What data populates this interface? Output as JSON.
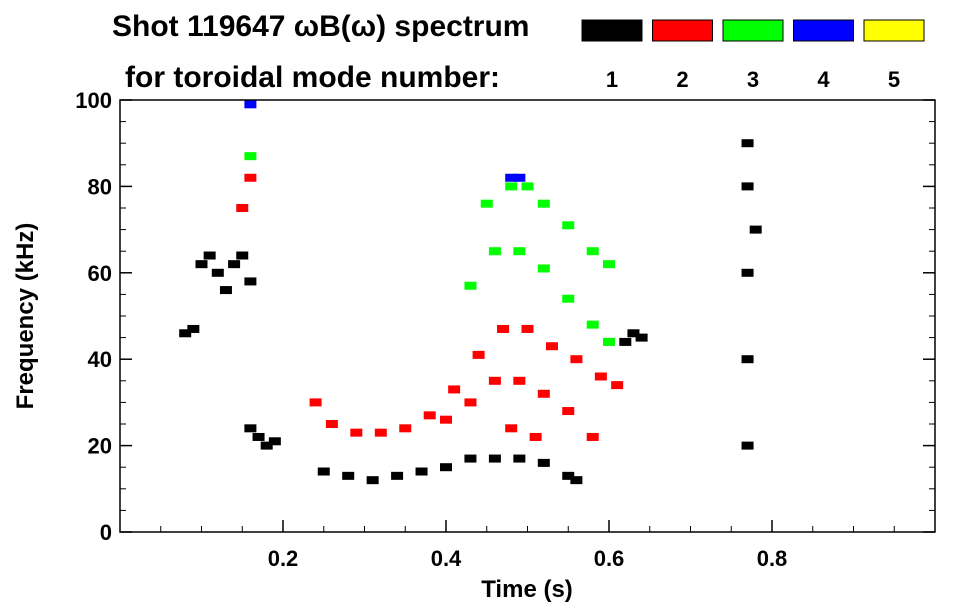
{
  "chart_data": {
    "type": "scatter",
    "title_line1": "Shot 119647 ωB(ω) spectrum",
    "title_line2": "for toroidal mode number:",
    "xlabel": "Time (s)",
    "ylabel": "Frequency (kHz)",
    "xlim": [
      0.0,
      1.0
    ],
    "ylim": [
      0,
      100
    ],
    "x_ticks": [
      0.2,
      0.4,
      0.6,
      0.8
    ],
    "x_tick_labels": [
      "0.2",
      "0.4",
      "0.6",
      "0.8"
    ],
    "y_ticks": [
      0,
      20,
      40,
      60,
      80,
      100
    ],
    "y_tick_labels": [
      "0",
      "20",
      "40",
      "60",
      "80",
      "100"
    ],
    "grid": false,
    "legend_placement": "top-right",
    "series": [
      {
        "name": "1",
        "color": "#000000",
        "points": [
          [
            0.08,
            46
          ],
          [
            0.09,
            47
          ],
          [
            0.1,
            62
          ],
          [
            0.11,
            64
          ],
          [
            0.12,
            60
          ],
          [
            0.13,
            56
          ],
          [
            0.14,
            62
          ],
          [
            0.15,
            64
          ],
          [
            0.16,
            58
          ],
          [
            0.16,
            24
          ],
          [
            0.17,
            22
          ],
          [
            0.18,
            20
          ],
          [
            0.19,
            21
          ],
          [
            0.25,
            14
          ],
          [
            0.28,
            13
          ],
          [
            0.31,
            12
          ],
          [
            0.34,
            13
          ],
          [
            0.37,
            14
          ],
          [
            0.4,
            15
          ],
          [
            0.43,
            17
          ],
          [
            0.46,
            17
          ],
          [
            0.49,
            17
          ],
          [
            0.52,
            16
          ],
          [
            0.55,
            13
          ],
          [
            0.56,
            12
          ],
          [
            0.62,
            44
          ],
          [
            0.63,
            46
          ],
          [
            0.64,
            45
          ],
          [
            0.77,
            90
          ],
          [
            0.77,
            80
          ],
          [
            0.77,
            60
          ],
          [
            0.77,
            40
          ],
          [
            0.77,
            20
          ],
          [
            0.78,
            70
          ]
        ]
      },
      {
        "name": "2",
        "color": "#ff0000",
        "points": [
          [
            0.15,
            75
          ],
          [
            0.16,
            82
          ],
          [
            0.24,
            30
          ],
          [
            0.26,
            25
          ],
          [
            0.29,
            23
          ],
          [
            0.32,
            23
          ],
          [
            0.35,
            24
          ],
          [
            0.38,
            27
          ],
          [
            0.41,
            33
          ],
          [
            0.44,
            41
          ],
          [
            0.47,
            47
          ],
          [
            0.5,
            47
          ],
          [
            0.53,
            43
          ],
          [
            0.56,
            40
          ],
          [
            0.59,
            36
          ],
          [
            0.61,
            34
          ],
          [
            0.4,
            26
          ],
          [
            0.43,
            30
          ],
          [
            0.46,
            35
          ],
          [
            0.49,
            35
          ],
          [
            0.52,
            32
          ],
          [
            0.55,
            28
          ],
          [
            0.58,
            22
          ],
          [
            0.48,
            24
          ],
          [
            0.51,
            22
          ]
        ]
      },
      {
        "name": "3",
        "color": "#00ff00",
        "points": [
          [
            0.16,
            87
          ],
          [
            0.43,
            57
          ],
          [
            0.46,
            65
          ],
          [
            0.49,
            65
          ],
          [
            0.52,
            61
          ],
          [
            0.55,
            54
          ],
          [
            0.58,
            48
          ],
          [
            0.6,
            44
          ],
          [
            0.45,
            76
          ],
          [
            0.48,
            80
          ],
          [
            0.5,
            80
          ],
          [
            0.52,
            76
          ],
          [
            0.55,
            71
          ],
          [
            0.58,
            65
          ],
          [
            0.6,
            62
          ]
        ]
      },
      {
        "name": "4",
        "color": "#0000ff",
        "points": [
          [
            0.16,
            99
          ],
          [
            0.48,
            82
          ],
          [
            0.49,
            82
          ]
        ]
      },
      {
        "name": "5",
        "color": "#ffff00",
        "points": []
      }
    ]
  }
}
